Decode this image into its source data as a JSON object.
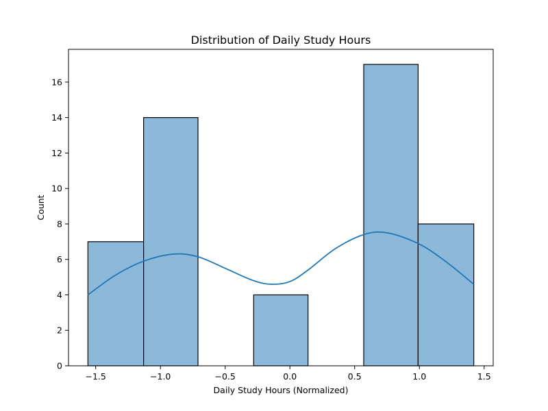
{
  "chart_data": {
    "type": "bar",
    "title": "Distribution of Daily Study Hours",
    "xlabel": "Daily Study Hours (Normalized)",
    "ylabel": "Count",
    "xlim": [
      -1.71,
      1.57
    ],
    "ylim": [
      0,
      17.85
    ],
    "xticks": [
      -1.5,
      -1.0,
      -0.5,
      0.0,
      0.5,
      1.0,
      1.5
    ],
    "xtick_labels": [
      "−1.5",
      "−1.0",
      "−0.5",
      "0.0",
      "0.5",
      "1.0",
      "1.5"
    ],
    "yticks": [
      0,
      2,
      4,
      6,
      8,
      10,
      12,
      14,
      16
    ],
    "ytick_labels": [
      "0",
      "2",
      "4",
      "6",
      "8",
      "10",
      "12",
      "14",
      "16"
    ],
    "bins": [
      {
        "x0": -1.56,
        "x1": -1.13,
        "count": 7
      },
      {
        "x0": -1.13,
        "x1": -0.71,
        "count": 14
      },
      {
        "x0": -0.71,
        "x1": -0.28,
        "count": 0
      },
      {
        "x0": -0.28,
        "x1": 0.14,
        "count": 4
      },
      {
        "x0": 0.14,
        "x1": 0.57,
        "count": 0
      },
      {
        "x0": 0.57,
        "x1": 0.99,
        "count": 17
      },
      {
        "x0": 0.99,
        "x1": 1.42,
        "count": 8
      }
    ],
    "kde": {
      "x": [
        -1.56,
        -1.35,
        -1.13,
        -0.9,
        -0.71,
        -0.5,
        -0.28,
        -0.14,
        0.0,
        0.14,
        0.35,
        0.57,
        0.75,
        0.99,
        1.2,
        1.42
      ],
      "y": [
        4.0,
        5.1,
        5.9,
        6.3,
        6.15,
        5.5,
        4.8,
        4.6,
        4.75,
        5.4,
        6.6,
        7.4,
        7.5,
        6.9,
        5.9,
        4.6
      ]
    },
    "grid": false,
    "colors": {
      "bar_fill": "#8cb8d9",
      "bar_edge": "#000000",
      "kde_line": "#1f77b4"
    }
  }
}
